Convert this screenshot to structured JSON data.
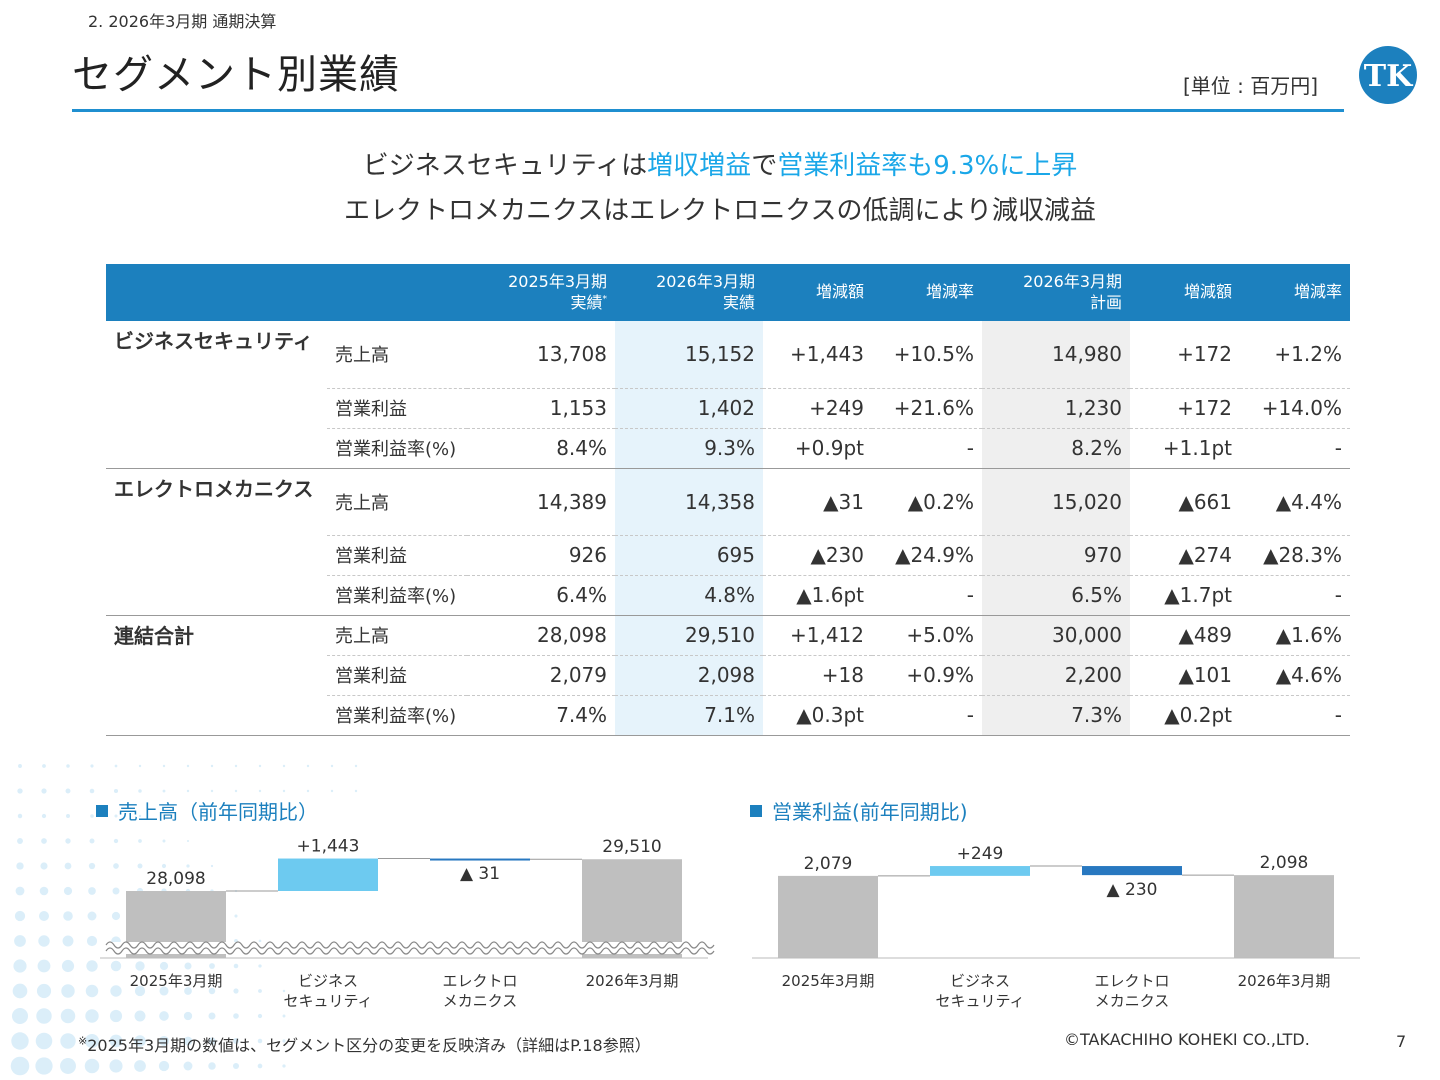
{
  "header": {
    "section": "2.  2026年3月期 通期決算",
    "title": "セグメント別業績",
    "unit": "[単位 : 百万円]",
    "logo_text": "TK"
  },
  "headline": {
    "line1_a": "ビジネスセキュリティは",
    "line1_b": "増収増益",
    "line1_c": "で",
    "line1_d": "営業利益率も9.3%に上昇",
    "line2": "エレクトロメカニクスはエレクトロニクスの低調により減収減益"
  },
  "table": {
    "headers": {
      "c1_l1": "2025年3月期",
      "c1_l2": "実績",
      "c1_mark": "*",
      "c2_l1": "2026年3月期",
      "c2_l2": "実績",
      "c3": "増減額",
      "c4": "増減率",
      "c5_l1": "2026年3月期",
      "c5_l2": "計画",
      "c6": "増減額",
      "c7": "増減率"
    },
    "segments": [
      {
        "name": "ビジネスセキュリティ",
        "rows": [
          {
            "item": "売上高",
            "v": [
              "13,708",
              "15,152",
              "+1,443",
              "+10.5%",
              "14,980",
              "+172",
              "+1.2%"
            ]
          },
          {
            "item": "営業利益",
            "v": [
              "1,153",
              "1,402",
              "+249",
              "+21.6%",
              "1,230",
              "+172",
              "+14.0%"
            ]
          },
          {
            "item": "営業利益率(%)",
            "v": [
              "8.4%",
              "9.3%",
              "+0.9pt",
              "-",
              "8.2%",
              "+1.1pt",
              "-"
            ]
          }
        ]
      },
      {
        "name": "エレクトロメカニクス",
        "rows": [
          {
            "item": "売上高",
            "v": [
              "14,389",
              "14,358",
              "▲31",
              "▲0.2%",
              "15,020",
              "▲661",
              "▲4.4%"
            ]
          },
          {
            "item": "営業利益",
            "v": [
              "926",
              "695",
              "▲230",
              "▲24.9%",
              "970",
              "▲274",
              "▲28.3%"
            ]
          },
          {
            "item": "営業利益率(%)",
            "v": [
              "6.4%",
              "4.8%",
              "▲1.6pt",
              "-",
              "6.5%",
              "▲1.7pt",
              "-"
            ]
          }
        ]
      },
      {
        "name": "連結合計",
        "rows": [
          {
            "item": "売上高",
            "v": [
              "28,098",
              "29,510",
              "+1,412",
              "+5.0%",
              "30,000",
              "▲489",
              "▲1.6%"
            ]
          },
          {
            "item": "営業利益",
            "v": [
              "2,079",
              "2,098",
              "+18",
              "+0.9%",
              "2,200",
              "▲101",
              "▲4.6%"
            ]
          },
          {
            "item": "営業利益率(%)",
            "v": [
              "7.4%",
              "7.1%",
              "▲0.3pt",
              "-",
              "7.3%",
              "▲0.2pt",
              "-"
            ]
          }
        ]
      }
    ]
  },
  "chart_data": [
    {
      "type": "bar",
      "subtype": "waterfall",
      "title": "売上高（前年同期比）",
      "categories": [
        "2025年3月期",
        "ビジネス\nセキュリティ",
        "エレクトロ\nメカニクス",
        "2026年3月期"
      ],
      "values": [
        28098,
        1443,
        -31,
        29510
      ],
      "value_labels": [
        "28,098",
        "+1,443",
        "▲ 31",
        "29,510"
      ],
      "axis_break": true
    },
    {
      "type": "bar",
      "subtype": "waterfall",
      "title": "営業利益(前年同期比)",
      "categories": [
        "2025年3月期",
        "ビジネス\nセキュリティ",
        "エレクトロ\nメカニクス",
        "2026年3月期"
      ],
      "values": [
        2079,
        249,
        -230,
        2098
      ],
      "value_labels": [
        "2,079",
        "+249",
        "▲ 230",
        "2,098"
      ],
      "axis_break": false
    }
  ],
  "colors": {
    "brand": "#1c80be",
    "accent": "#1aa7e8",
    "electro": "#5bbfc6",
    "total_bar": "#bfbfbf",
    "increase_bar": "#6dcaf0",
    "decrease_bar": "#2878c0",
    "col_highlight": "#e6f3fb",
    "col_plan": "#efefef"
  },
  "footer": {
    "note_mark": "※",
    "note": "2025年3月期の数値は、セグメント区分の変更を反映済み（詳細はP.18参照）",
    "copyright": "©TAKACHIHO KOHEKI CO.,LTD.",
    "page": "7"
  }
}
